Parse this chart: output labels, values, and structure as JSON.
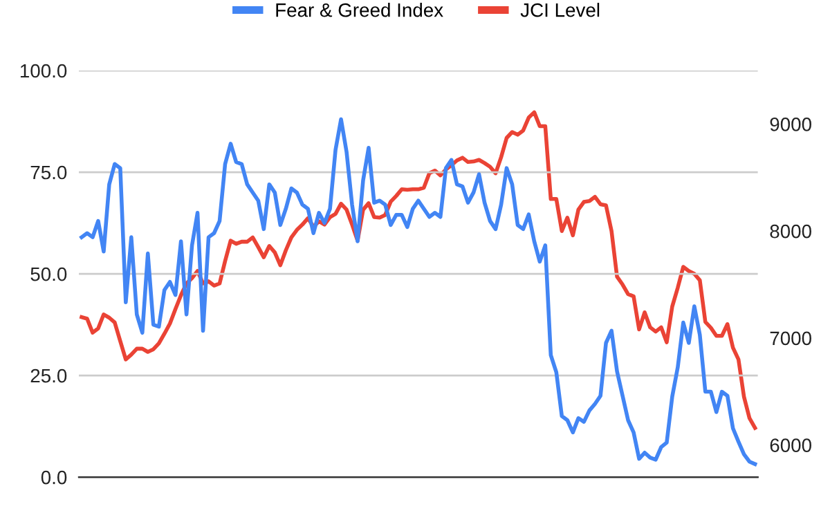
{
  "chart_data": {
    "type": "line",
    "categories": [
      null,
      null,
      null,
      null,
      null,
      null,
      null,
      null,
      null,
      null,
      null,
      null,
      null,
      null,
      null,
      null,
      null,
      null,
      null,
      null,
      null,
      null,
      null,
      null,
      null,
      null,
      null,
      null,
      null,
      null,
      null,
      null,
      null,
      null,
      null,
      null,
      null,
      null,
      null,
      null,
      null,
      null,
      null,
      null,
      null,
      null,
      null,
      null,
      null,
      null,
      null,
      null,
      null,
      null,
      null,
      null,
      null,
      null,
      null,
      null,
      null,
      null,
      null,
      null,
      null,
      null,
      null,
      null,
      null,
      null,
      null,
      null,
      null,
      null,
      null,
      null,
      null,
      null,
      null,
      null,
      null,
      null,
      null,
      null,
      null,
      null,
      null,
      null,
      null,
      null,
      null,
      null,
      null,
      null,
      null,
      null,
      null,
      null,
      null,
      null,
      null,
      null,
      null,
      null,
      null,
      null,
      null,
      null,
      null,
      null,
      null,
      null,
      null,
      null,
      null,
      null,
      null,
      null,
      null,
      null,
      null,
      null,
      null
    ],
    "series": [
      {
        "name": "Fear & Greed Index",
        "color": "#4285f4",
        "values": [
          59,
          60,
          59,
          63,
          55.5,
          72,
          77,
          76,
          43,
          59,
          40,
          35.5,
          55,
          37.5,
          37,
          46,
          48,
          44.8,
          58,
          40,
          57,
          65,
          36,
          59,
          60,
          63,
          77,
          82,
          77.5,
          77,
          72,
          70,
          68,
          61,
          72,
          70,
          62,
          66,
          71,
          70,
          67,
          66,
          60,
          65,
          62.5,
          66,
          80.5,
          88,
          80,
          67,
          58,
          73,
          81,
          67.5,
          68,
          67,
          62,
          64.5,
          64.5,
          61.5,
          66,
          68,
          66,
          64,
          65,
          64,
          76,
          78,
          72,
          71.5,
          67.5,
          70,
          74.5,
          67.5,
          63,
          61,
          67,
          76,
          72,
          62,
          61,
          64.6,
          58,
          53,
          57,
          30,
          25.8,
          15,
          14,
          11,
          14.5,
          13.6,
          16.4,
          18,
          20,
          33,
          36,
          26,
          20,
          14,
          11,
          4.5,
          6,
          4.8,
          4.3,
          7.4,
          8.5,
          19.8,
          27,
          38,
          33,
          42,
          35,
          21,
          21,
          16,
          21,
          20,
          12,
          8.7,
          5.6,
          3.8,
          3.2
        ]
      },
      {
        "name": "JCI Level",
        "color": "#ea4335",
        "axis": "y2",
        "values": [
          7195,
          7180,
          7050,
          7090,
          7220,
          7190,
          7145,
          6971,
          6800,
          6845,
          6900,
          6900,
          6870,
          6895,
          6950,
          7040,
          7135,
          7270,
          7400,
          7510,
          7560,
          7626,
          7510,
          7530,
          7490,
          7510,
          7720,
          7910,
          7880,
          7900,
          7900,
          7940,
          7850,
          7755,
          7860,
          7800,
          7680,
          7820,
          7940,
          8010,
          8060,
          8120,
          8040,
          8090,
          8060,
          8130,
          8160,
          8255,
          8200,
          8060,
          7910,
          8199,
          8260,
          8130,
          8125,
          8150,
          8275,
          8328,
          8390,
          8385,
          8390,
          8390,
          8405,
          8540,
          8565,
          8520,
          8575,
          8615,
          8660,
          8685,
          8645,
          8650,
          8665,
          8635,
          8600,
          8540,
          8690,
          8870,
          8925,
          8900,
          8940,
          9060,
          9110,
          8980,
          8980,
          8300,
          8300,
          8000,
          8125,
          7960,
          8200,
          8272,
          8280,
          8320,
          8250,
          8240,
          8000,
          7574,
          7500,
          7410,
          7390,
          7080,
          7240,
          7100,
          7060,
          7100,
          6960,
          7294,
          7470,
          7665,
          7626,
          7600,
          7540,
          7150,
          7095,
          7020,
          7020,
          7130,
          6910,
          6800,
          6450,
          6250,
          6160
        ]
      }
    ],
    "ylim": [
      0,
      100
    ],
    "yticks": [
      {
        "value": 0,
        "label": "0.0"
      },
      {
        "value": 25,
        "label": "25.0"
      },
      {
        "value": 50,
        "label": "50.0"
      },
      {
        "value": 75,
        "label": "75.0"
      },
      {
        "value": 100,
        "label": "100.0"
      }
    ],
    "y2lim": [
      5700,
      9500
    ],
    "y2ticks": [
      6000,
      7000,
      8000,
      9000
    ],
    "grid": "y",
    "legend": "top",
    "marker": "none",
    "line_style": "solid"
  }
}
